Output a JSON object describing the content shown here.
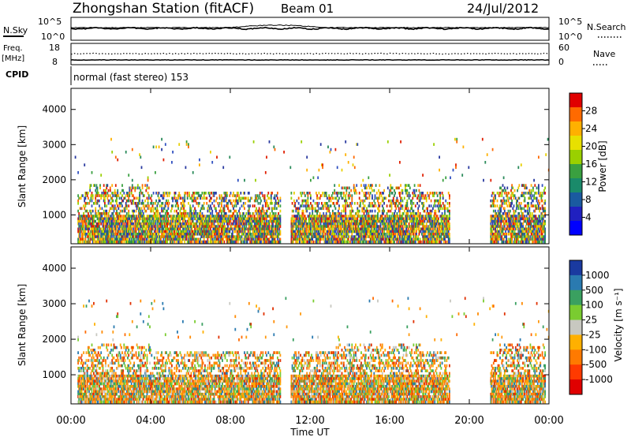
{
  "header": {
    "station": "Zhongshan Station (fitACF)",
    "beam": "Beam 01",
    "date": "24/Jul/2012"
  },
  "summary_panels": {
    "nsky_label": "N.Sky",
    "nsearch_label": "N.Search",
    "noise_ticks": [
      "10^5",
      "10^0"
    ],
    "freq_label_top": "Freq.",
    "freq_label_unit": "[MHz]",
    "freq_ticks": [
      "18",
      "8"
    ],
    "nave_label": "Nave",
    "nave_ticks": [
      "60",
      "0"
    ],
    "cpid_label": "CPID",
    "cpid_text": "normal (fast stereo) 153"
  },
  "chart_data": [
    {
      "type": "heatmap",
      "panel": "power",
      "ylabel": "Slant Range [km]",
      "yticks": [
        1000,
        2000,
        3000,
        4000
      ],
      "ylim": [
        180,
        4600
      ],
      "xlim_hours": [
        0,
        24
      ],
      "colorbar": {
        "label": "Power [dB]",
        "ticks": [
          "28",
          "24",
          "20",
          "16",
          "12",
          "8",
          "4"
        ],
        "colors": [
          "#e00000",
          "#ff6a00",
          "#ffb000",
          "#e8e000",
          "#9ad000",
          "#3aa040",
          "#1a8a6a",
          "#1a5aa0",
          "#2020c0",
          "#0000ff"
        ]
      }
    },
    {
      "type": "heatmap",
      "panel": "velocity",
      "ylabel": "Slant Range [km]",
      "yticks": [
        1000,
        2000,
        3000,
        4000
      ],
      "ylim": [
        180,
        4600
      ],
      "xlim_hours": [
        0,
        24
      ],
      "colorbar": {
        "label": "Velocity [m s⁻¹]",
        "ticks": [
          "1000",
          "500",
          "100",
          "25",
          "-25",
          "-100",
          "-500",
          "-1000"
        ],
        "colors": [
          "#1a3aa0",
          "#2a7ab0",
          "#3aa060",
          "#7acc30",
          "#c8c8c0",
          "#ffb000",
          "#ff7a00",
          "#ff3a00",
          "#e00000"
        ]
      }
    }
  ],
  "x_axis": {
    "ticks": [
      "00:00",
      "04:00",
      "08:00",
      "12:00",
      "16:00",
      "20:00",
      "00:00"
    ],
    "label": "Time UT"
  }
}
